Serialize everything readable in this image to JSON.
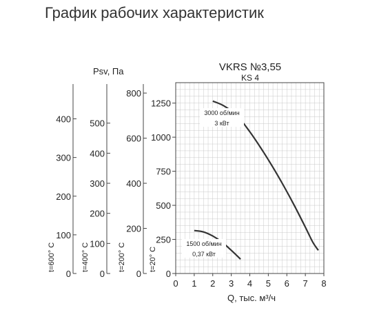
{
  "page_title": "График рабочих характеристик",
  "colors": {
    "curve": "#333333",
    "grid": "#c8c8c8",
    "axis": "#444444",
    "text": "#222222"
  },
  "chart_data": {
    "type": "line",
    "title": "VKRS №3,55",
    "subtitle": "KS 4",
    "xlabel": "Q, тыс. м³/ч",
    "xlim": [
      0,
      8
    ],
    "x_ticks": [
      0,
      1,
      2,
      3,
      4,
      5,
      6,
      7,
      8
    ],
    "grid": true,
    "main_axis": {
      "label": "t=20° C",
      "ylim": [
        0,
        1400
      ],
      "ticks": [
        0,
        250,
        500,
        750,
        1000,
        1250
      ]
    },
    "pressure_scales": [
      {
        "label": "t=600° C",
        "ymax": 490,
        "ticks": [
          0,
          100,
          200,
          300,
          400
        ]
      },
      {
        "label": "t=400° C",
        "ymax": 630,
        "ticks": [
          0,
          100,
          200,
          300,
          400,
          500
        ]
      },
      {
        "label": "t=200° C",
        "ymax": 840,
        "ticks": [
          0,
          200,
          400,
          600,
          800
        ]
      }
    ],
    "pressure_label": "Psv, Па",
    "series": [
      {
        "name": "3000 об/мин",
        "name_line2": "3 кВт",
        "x": [
          2.0,
          2.6,
          3.3,
          4.0,
          4.6,
          5.2,
          5.8,
          6.4,
          7.0,
          7.4,
          7.7
        ],
        "y": [
          1265,
          1230,
          1160,
          1040,
          920,
          790,
          650,
          500,
          340,
          230,
          170
        ]
      },
      {
        "name": "1500 об/мин",
        "name_line2": "0,37 кВт",
        "x": [
          1.0,
          1.5,
          2.0,
          2.5,
          3.0,
          3.5
        ],
        "y": [
          315,
          305,
          275,
          230,
          170,
          105
        ]
      }
    ]
  }
}
